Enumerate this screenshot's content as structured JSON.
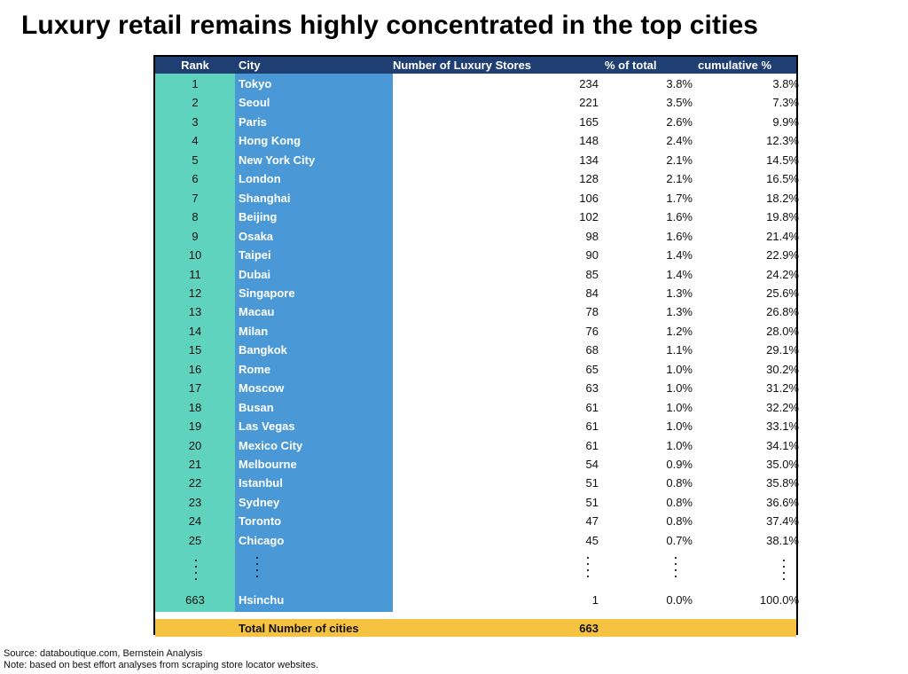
{
  "title": "Luxury retail remains highly concentrated in the top cities",
  "columns": {
    "rank": "Rank",
    "city": "City",
    "stores": "Number of Luxury Stores",
    "pct": "% of total",
    "cum": "cumulative %"
  },
  "rows": [
    {
      "rank": "1",
      "city": "Tokyo",
      "stores": "234",
      "pct": "3.8%",
      "cum": "3.8%"
    },
    {
      "rank": "2",
      "city": "Seoul",
      "stores": "221",
      "pct": "3.5%",
      "cum": "7.3%"
    },
    {
      "rank": "3",
      "city": "Paris",
      "stores": "165",
      "pct": "2.6%",
      "cum": "9.9%"
    },
    {
      "rank": "4",
      "city": "Hong Kong",
      "stores": "148",
      "pct": "2.4%",
      "cum": "12.3%"
    },
    {
      "rank": "5",
      "city": "New York City",
      "stores": "134",
      "pct": "2.1%",
      "cum": "14.5%"
    },
    {
      "rank": "6",
      "city": "London",
      "stores": "128",
      "pct": "2.1%",
      "cum": "16.5%"
    },
    {
      "rank": "7",
      "city": "Shanghai",
      "stores": "106",
      "pct": "1.7%",
      "cum": "18.2%"
    },
    {
      "rank": "8",
      "city": "Beijing",
      "stores": "102",
      "pct": "1.6%",
      "cum": "19.8%"
    },
    {
      "rank": "9",
      "city": "Osaka",
      "stores": "98",
      "pct": "1.6%",
      "cum": "21.4%"
    },
    {
      "rank": "10",
      "city": "Taipei",
      "stores": "90",
      "pct": "1.4%",
      "cum": "22.9%"
    },
    {
      "rank": "11",
      "city": "Dubai",
      "stores": "85",
      "pct": "1.4%",
      "cum": "24.2%"
    },
    {
      "rank": "12",
      "city": "Singapore",
      "stores": "84",
      "pct": "1.3%",
      "cum": "25.6%"
    },
    {
      "rank": "13",
      "city": "Macau",
      "stores": "78",
      "pct": "1.3%",
      "cum": "26.8%"
    },
    {
      "rank": "14",
      "city": "Milan",
      "stores": "76",
      "pct": "1.2%",
      "cum": "28.0%"
    },
    {
      "rank": "15",
      "city": "Bangkok",
      "stores": "68",
      "pct": "1.1%",
      "cum": "29.1%"
    },
    {
      "rank": "16",
      "city": "Rome",
      "stores": "65",
      "pct": "1.0%",
      "cum": "30.2%"
    },
    {
      "rank": "17",
      "city": "Moscow",
      "stores": "63",
      "pct": "1.0%",
      "cum": "31.2%"
    },
    {
      "rank": "18",
      "city": "Busan",
      "stores": "61",
      "pct": "1.0%",
      "cum": "32.2%"
    },
    {
      "rank": "19",
      "city": "Las Vegas",
      "stores": "61",
      "pct": "1.0%",
      "cum": "33.1%"
    },
    {
      "rank": "20",
      "city": "Mexico City",
      "stores": "61",
      "pct": "1.0%",
      "cum": "34.1%"
    },
    {
      "rank": "21",
      "city": "Melbourne",
      "stores": "54",
      "pct": "0.9%",
      "cum": "35.0%"
    },
    {
      "rank": "22",
      "city": "Istanbul",
      "stores": "51",
      "pct": "0.8%",
      "cum": "35.8%"
    },
    {
      "rank": "23",
      "city": "Sydney",
      "stores": "51",
      "pct": "0.8%",
      "cum": "36.6%"
    },
    {
      "rank": "24",
      "city": "Toronto",
      "stores": "47",
      "pct": "0.8%",
      "cum": "37.4%"
    },
    {
      "rank": "25",
      "city": "Chicago",
      "stores": "45",
      "pct": "0.7%",
      "cum": "38.1%"
    }
  ],
  "last_row": {
    "rank": "663",
    "city": "Hsinchu",
    "stores": "1",
    "pct": "0.0%",
    "cum": "100.0%"
  },
  "total": {
    "label": "Total Number of cities",
    "value": "663"
  },
  "source": "Source: databoutique.com, Bernstein Analysis",
  "note": "Note: based on best effort analyses from scraping store locator websites.",
  "colors": {
    "header": "#1f3f73",
    "rank_column": "#5fd3be",
    "city_column": "#4a98d6",
    "total_row": "#f5c242"
  }
}
